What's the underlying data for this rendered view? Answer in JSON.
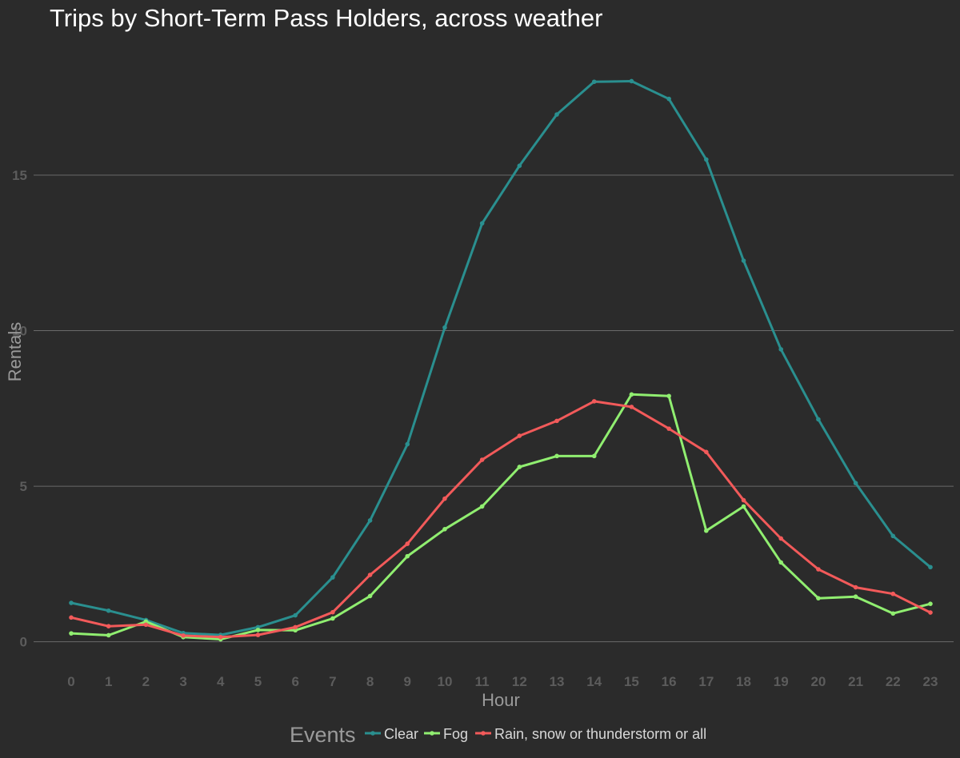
{
  "chart_data": {
    "type": "line",
    "title": "Trips by Short-Term Pass Holders, across weather",
    "xlabel": "Hour",
    "ylabel": "Rentals",
    "ylim": [
      -0.6,
      19.6
    ],
    "yticks": [
      0,
      5,
      10,
      15
    ],
    "ytick_labels": [
      "0",
      "5",
      "10",
      "15"
    ],
    "grid": true,
    "legend": {
      "title": "Events",
      "position": "bottom"
    },
    "x": [
      "0",
      "1",
      "2",
      "3",
      "4",
      "5",
      "6",
      "7",
      "8",
      "9",
      "10",
      "11",
      "12",
      "13",
      "14",
      "15",
      "16",
      "17",
      "18",
      "19",
      "20",
      "21",
      "22",
      "23"
    ],
    "series": [
      {
        "name": "Clear",
        "color": "#2a8f8f",
        "values": [
          1.25,
          1.0,
          0.7,
          0.28,
          0.22,
          0.47,
          0.85,
          2.07,
          3.9,
          6.35,
          10.1,
          13.45,
          15.3,
          16.95,
          18.0,
          18.02,
          17.45,
          15.5,
          12.25,
          9.4,
          7.15,
          5.1,
          3.4,
          2.4
        ]
      },
      {
        "name": "Fog",
        "color": "#90ee70",
        "values": [
          0.27,
          0.21,
          0.65,
          0.15,
          0.08,
          0.38,
          0.37,
          0.75,
          1.47,
          2.75,
          3.62,
          4.35,
          5.62,
          5.97,
          5.97,
          7.95,
          7.9,
          3.57,
          4.35,
          2.55,
          1.4,
          1.45,
          0.91,
          1.22
        ]
      },
      {
        "name": "Rain, snow or thunderstorm or all",
        "color": "#f25a5a",
        "values": [
          0.78,
          0.5,
          0.55,
          0.2,
          0.15,
          0.22,
          0.47,
          0.95,
          2.15,
          3.15,
          4.6,
          5.85,
          6.62,
          7.1,
          7.73,
          7.55,
          6.85,
          6.1,
          4.55,
          3.32,
          2.33,
          1.75,
          1.54,
          0.94
        ]
      }
    ]
  }
}
